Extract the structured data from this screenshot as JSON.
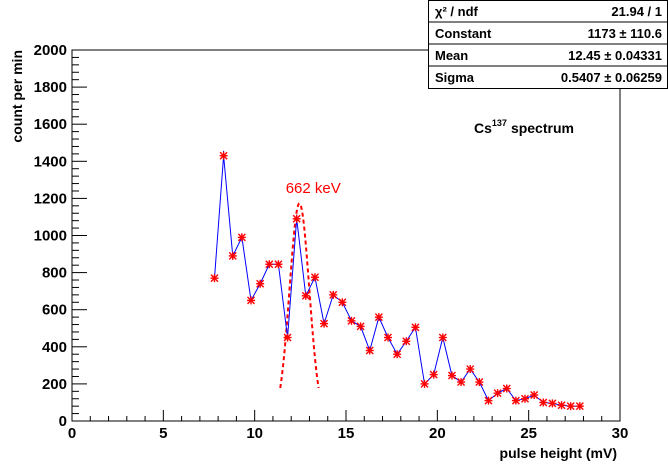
{
  "chart_data": {
    "type": "scatter",
    "title": "",
    "xlabel": "pulse height (mV)",
    "ylabel": "count per min",
    "xlim": [
      0,
      30
    ],
    "ylim": [
      0,
      2000
    ],
    "x_ticks": [
      "0",
      "5",
      "10",
      "15",
      "20",
      "25",
      "30"
    ],
    "y_ticks": [
      "0",
      "200",
      "400",
      "600",
      "800",
      "1000",
      "1200",
      "1400",
      "1600",
      "1800",
      "2000"
    ],
    "grid": false,
    "colors": {
      "line": "#0000ff",
      "marker": "#ff0000",
      "fit": "#ff0000",
      "error_bar": "#0000ff"
    },
    "series": [
      {
        "x": [
          7.8,
          8.3,
          8.8,
          9.3,
          9.8,
          10.3,
          10.8,
          11.3,
          11.8,
          12.3,
          12.8,
          13.3,
          13.8,
          14.3,
          14.8,
          15.3,
          15.8,
          16.3,
          16.8,
          17.3,
          17.8,
          18.3,
          18.8,
          19.3,
          19.8,
          20.3,
          20.8,
          21.3,
          21.8,
          22.3,
          22.8,
          23.3,
          23.8,
          24.3,
          24.8,
          25.3,
          25.8,
          26.3,
          26.8,
          27.3,
          27.8
        ],
        "y": [
          770,
          1430,
          890,
          990,
          650,
          740,
          845,
          845,
          450,
          1090,
          675,
          775,
          525,
          680,
          640,
          540,
          510,
          380,
          560,
          450,
          360,
          430,
          505,
          200,
          250,
          450,
          245,
          210,
          280,
          210,
          110,
          150,
          175,
          110,
          120,
          140,
          100,
          95,
          85,
          80,
          80
        ]
      }
    ],
    "fit": {
      "function": "gaussian",
      "Constant": 1173,
      "Mean": 12.45,
      "Sigma": 0.5407,
      "x_range": [
        11.4,
        13.5
      ]
    },
    "annotations": {
      "peak_label": "662 keV",
      "spectrum_element": "Cs",
      "spectrum_isotope": "137",
      "spectrum_word": "spectrum"
    },
    "stats_box": {
      "rows": [
        {
          "label": "χ² / ndf",
          "value": "21.94 / 1"
        },
        {
          "label": "Constant",
          "value": "1173 ± 110.6"
        },
        {
          "label": "Mean",
          "value": "12.45 ± 0.04331"
        },
        {
          "label": "Sigma",
          "value": "0.5407 ± 0.06259"
        }
      ]
    }
  }
}
